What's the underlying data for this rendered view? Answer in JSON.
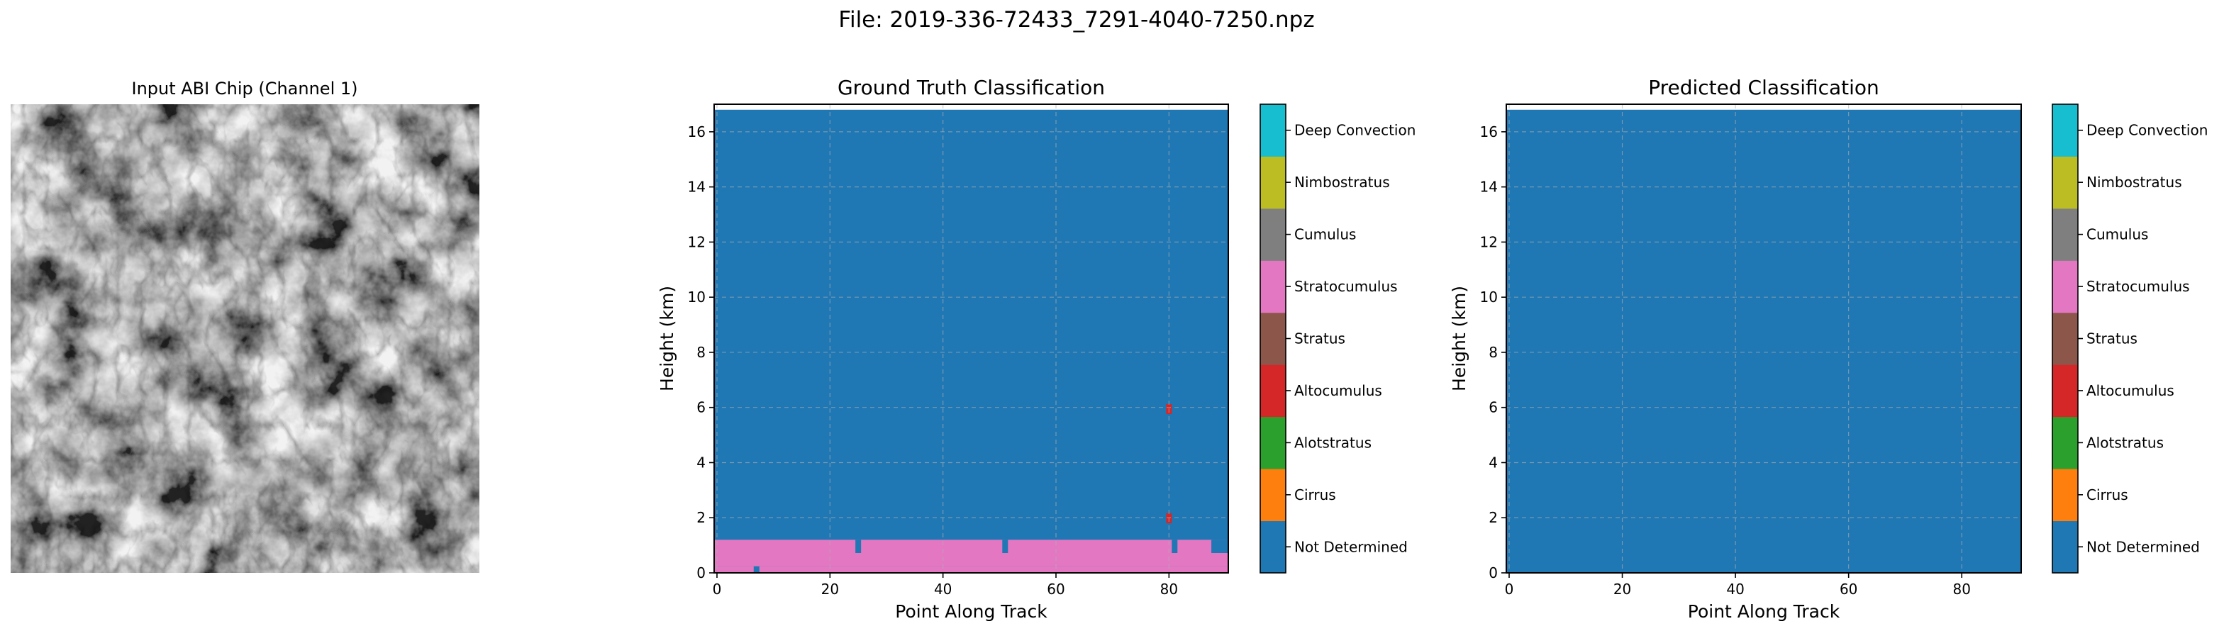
{
  "figure": {
    "suptitle": "File: 2019-336-72433_7291-4040-7250.npz"
  },
  "image_panel": {
    "title": "Input ABI Chip (Channel 1)"
  },
  "classes": [
    {
      "name": "Not Determined",
      "color": "#1f77b4"
    },
    {
      "name": "Cirrus",
      "color": "#ff7f0e"
    },
    {
      "name": "Alotstratus",
      "color": "#2ca02c"
    },
    {
      "name": "Altocumulus",
      "color": "#d62728"
    },
    {
      "name": "Stratus",
      "color": "#8c564b"
    },
    {
      "name": "Stratocumulus",
      "color": "#e377c2"
    },
    {
      "name": "Cumulus",
      "color": "#7f7f7f"
    },
    {
      "name": "Nimbostratus",
      "color": "#bcbd22"
    },
    {
      "name": "Deep Convection",
      "color": "#17becf"
    }
  ],
  "chart_data": [
    {
      "type": "heatmap",
      "title": "Ground Truth Classification",
      "xlabel": "Point Along Track",
      "ylabel": "Height (km)",
      "xlim": [
        -0.5,
        90.5
      ],
      "ylim": [
        0,
        17
      ],
      "xticks": [
        0,
        20,
        40,
        60,
        80
      ],
      "yticks": [
        0,
        2,
        4,
        6,
        8,
        10,
        12,
        14,
        16
      ],
      "grid": true,
      "data_extent_km": [
        0,
        16.8
      ],
      "background_class": "Not Determined",
      "regions": [
        {
          "class": "Stratocumulus",
          "x": [
            0,
            90
          ],
          "y": [
            0.24,
            1.2
          ]
        },
        {
          "class": "Stratocumulus",
          "x": [
            0,
            6
          ],
          "y": [
            0,
            0.24
          ]
        },
        {
          "class": "Stratocumulus",
          "x": [
            8,
            90
          ],
          "y": [
            0,
            0.24
          ]
        },
        {
          "class": "Not Determined",
          "x": [
            25,
            25
          ],
          "y": [
            0.72,
            1.2
          ]
        },
        {
          "class": "Not Determined",
          "x": [
            51,
            51
          ],
          "y": [
            0.72,
            1.2
          ]
        },
        {
          "class": "Not Determined",
          "x": [
            81,
            81
          ],
          "y": [
            0.72,
            1.2
          ]
        },
        {
          "class": "Not Determined",
          "x": [
            88,
            90
          ],
          "y": [
            0.72,
            1.2
          ]
        },
        {
          "class": "Altocumulus",
          "x": [
            80,
            80
          ],
          "y": [
            1.8,
            2.16
          ]
        },
        {
          "class": "Altocumulus",
          "x": [
            80,
            80
          ],
          "y": [
            5.76,
            6.12
          ]
        }
      ]
    },
    {
      "type": "heatmap",
      "title": "Predicted Classification",
      "xlabel": "Point Along Track",
      "ylabel": "Height (km)",
      "xlim": [
        -0.5,
        90.5
      ],
      "ylim": [
        0,
        17
      ],
      "xticks": [
        0,
        20,
        40,
        60,
        80
      ],
      "yticks": [
        0,
        2,
        4,
        6,
        8,
        10,
        12,
        14,
        16
      ],
      "grid": true,
      "data_extent_km": [
        0,
        16.8
      ],
      "background_class": "Not Determined",
      "regions": []
    }
  ]
}
